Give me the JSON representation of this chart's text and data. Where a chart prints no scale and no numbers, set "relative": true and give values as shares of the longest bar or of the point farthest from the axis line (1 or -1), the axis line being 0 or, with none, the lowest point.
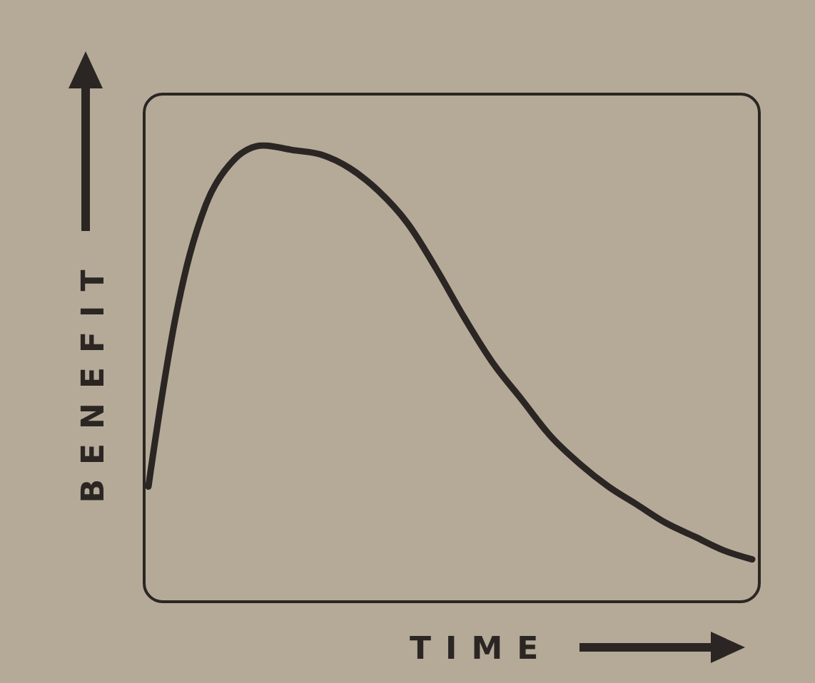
{
  "chart_data": {
    "type": "line",
    "xlabel": "TIME",
    "ylabel": "BENEFIT",
    "relative": true,
    "marker": "none",
    "categories": [
      null,
      null,
      null,
      null,
      null,
      null,
      null,
      null,
      null,
      null,
      null,
      null,
      null,
      null,
      null,
      null,
      null,
      null,
      null,
      null,
      null,
      null
    ],
    "series": [
      {
        "color": "#2b2623",
        "values": [
          0.25,
          0.64,
          0.87,
          0.97,
          1,
          0.99,
          0.98,
          0.95,
          0.9,
          0.83,
          0.73,
          0.62,
          0.52,
          0.44,
          0.36,
          0.3,
          0.25,
          0.21,
          0.17,
          0.14,
          0.11,
          0.09
        ]
      }
    ]
  }
}
